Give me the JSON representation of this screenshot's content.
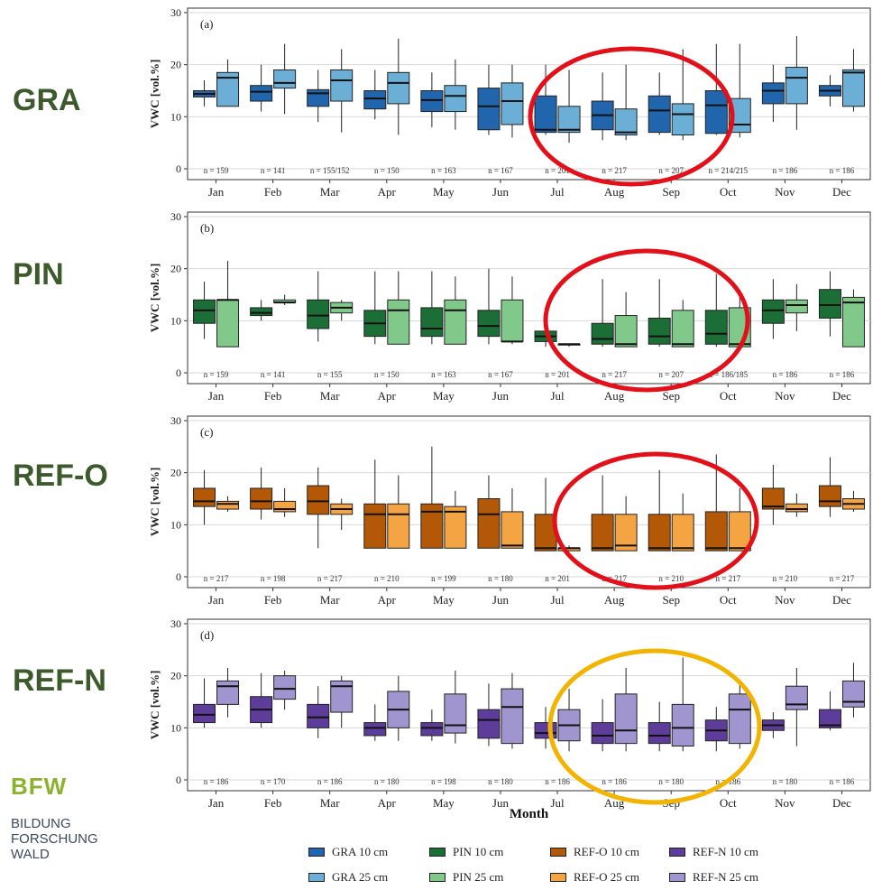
{
  "sites": [
    "GRA",
    "PIN",
    "REF-O",
    "REF-N"
  ],
  "brand": {
    "logo": "BFW",
    "lines": [
      "BILDUNG",
      "FORSCHUNG",
      "WALD"
    ]
  },
  "x_axis_title": "Month",
  "y_axis_label": "VWC [vol.%]",
  "legend": [
    {
      "label": "GRA 10 cm",
      "color": "#2166ac"
    },
    {
      "label": "GRA 25 cm",
      "color": "#6baed6"
    },
    {
      "label": "PIN 10 cm",
      "color": "#1b6e35"
    },
    {
      "label": "PIN 25 cm",
      "color": "#80c98a"
    },
    {
      "label": "REF-O 10 cm",
      "color": "#b35806"
    },
    {
      "label": "REF-O 25 cm",
      "color": "#f5a443"
    },
    {
      "label": "REF-N 10 cm",
      "color": "#5e3c99"
    },
    {
      "label": "REF-N 25 cm",
      "color": "#a195cf"
    }
  ],
  "highlights": [
    {
      "panel": 0,
      "color": "#e3101a"
    },
    {
      "panel": 1,
      "color": "#e3101a"
    },
    {
      "panel": 2,
      "color": "#e3101a"
    },
    {
      "panel": 3,
      "color": "#f2b400"
    }
  ],
  "chart_data": [
    {
      "type": "box",
      "panel_label": "(a)",
      "categories": [
        "Jan",
        "Feb",
        "Mar",
        "Apr",
        "May",
        "Jun",
        "Jul",
        "Aug",
        "Sep",
        "Oct",
        "Nov",
        "Dec"
      ],
      "ylabel": "VWC [vol.%]",
      "ylim": [
        0,
        30
      ],
      "yticks": [
        0,
        10,
        20,
        30
      ],
      "grid": true,
      "n_labels": [
        "n = 159",
        "n = 141",
        "n = 155/152",
        "n = 150",
        "n = 163",
        "n = 167",
        "n = 201",
        "n = 217",
        "n = 207",
        "n = 214/215",
        "n = 186",
        "n = 186"
      ],
      "series": [
        {
          "name": "GRA 10 cm",
          "color": "#2166ac",
          "boxes": [
            [
              12,
              13.8,
              14.4,
              15,
              17
            ],
            [
              11,
              13,
              14.8,
              16,
              20
            ],
            [
              9,
              12,
              14.5,
              15.2,
              19
            ],
            [
              9.5,
              11.5,
              13.5,
              15,
              19
            ],
            [
              8,
              11,
              13.2,
              15,
              18.5
            ],
            [
              6.5,
              7.5,
              12,
              15.5,
              20
            ],
            [
              6.5,
              7,
              7.5,
              14,
              20
            ],
            [
              5.5,
              7.5,
              10.3,
              13,
              18.5
            ],
            [
              6.5,
              7,
              11.2,
              14,
              18.5
            ],
            [
              6.5,
              6.8,
              12.2,
              15,
              24
            ],
            [
              9,
              12.5,
              15,
              16.5,
              20
            ],
            [
              12,
              14,
              15,
              16,
              18
            ]
          ]
        },
        {
          "name": "GRA 25 cm",
          "color": "#6baed6",
          "boxes": [
            [
              12,
              12,
              17.5,
              18.5,
              21
            ],
            [
              10.5,
              15.5,
              16.5,
              19,
              24
            ],
            [
              7,
              13,
              17,
              19,
              23
            ],
            [
              6.5,
              12.5,
              16.5,
              18.5,
              25
            ],
            [
              7.5,
              11,
              14,
              16,
              21
            ],
            [
              6,
              8.5,
              13,
              16.5,
              20
            ],
            [
              5,
              7,
              7.5,
              12,
              19
            ],
            [
              5.5,
              6.5,
              7,
              11.5,
              20
            ],
            [
              5.5,
              6.5,
              10.5,
              12.5,
              23
            ],
            [
              6,
              7,
              8.5,
              13.5,
              24
            ],
            [
              7.5,
              12.5,
              17.5,
              19.5,
              25.5
            ],
            [
              11,
              12,
              18.5,
              19,
              23
            ]
          ]
        }
      ]
    },
    {
      "type": "box",
      "panel_label": "(b)",
      "categories": [
        "Jan",
        "Feb",
        "Mar",
        "Apr",
        "May",
        "Jun",
        "Jul",
        "Aug",
        "Sep",
        "Oct",
        "Nov",
        "Dec"
      ],
      "ylabel": "VWC [vol.%]",
      "ylim": [
        0,
        30
      ],
      "yticks": [
        0,
        10,
        20,
        30
      ],
      "grid": true,
      "n_labels": [
        "n = 159",
        "n = 141",
        "n = 155",
        "n = 150",
        "n = 163",
        "n = 167",
        "n = 201",
        "n = 217",
        "n = 207",
        "n = 186/185",
        "n = 186",
        "n = 186"
      ],
      "series": [
        {
          "name": "PIN 10 cm",
          "color": "#1b6e35",
          "boxes": [
            [
              6.5,
              9.5,
              12,
              14,
              17.5
            ],
            [
              10,
              11,
              11.5,
              12.5,
              14
            ],
            [
              6,
              8.5,
              11,
              14,
              19.5
            ],
            [
              5.5,
              7,
              9.5,
              12,
              19.5
            ],
            [
              5.5,
              7,
              8.5,
              12.5,
              19.5
            ],
            [
              5.5,
              7,
              9,
              12,
              20
            ],
            [
              5,
              6,
              7,
              8,
              12
            ],
            [
              5,
              5.5,
              6.5,
              9.5,
              18
            ],
            [
              5,
              5.5,
              7,
              10.5,
              18
            ],
            [
              5,
              5.5,
              7.5,
              12,
              19
            ],
            [
              6.5,
              9.5,
              12,
              14,
              18
            ],
            [
              7,
              10.5,
              13,
              16,
              19.5
            ]
          ]
        },
        {
          "name": "PIN 25 cm",
          "color": "#80c98a",
          "boxes": [
            [
              5,
              5,
              14,
              14,
              21.5
            ],
            [
              13,
              13.5,
              13.5,
              14,
              15
            ],
            [
              10,
              11.5,
              12.5,
              13.5,
              14
            ],
            [
              5.5,
              5.5,
              12,
              14,
              19.5
            ],
            [
              5.5,
              5.5,
              12,
              14,
              18.5
            ],
            [
              5.5,
              6,
              6,
              14,
              18.5
            ],
            [
              5,
              5.5,
              5.5,
              5.5,
              5.5
            ],
            [
              5,
              5,
              5.5,
              11,
              15.5
            ],
            [
              5,
              5,
              5.5,
              12,
              14
            ],
            [
              5,
              5,
              5.5,
              12.5,
              16
            ],
            [
              8,
              11.5,
              13,
              14,
              17
            ],
            [
              5,
              5,
              13.5,
              14.5,
              16
            ]
          ]
        }
      ]
    },
    {
      "type": "box",
      "panel_label": "(c)",
      "categories": [
        "Jan",
        "Feb",
        "Mar",
        "Apr",
        "May",
        "Jun",
        "Jul",
        "Aug",
        "Sep",
        "Oct",
        "Nov",
        "Dec"
      ],
      "ylabel": "VWC [vol.%]",
      "ylim": [
        0,
        30
      ],
      "yticks": [
        0,
        10,
        20,
        30
      ],
      "grid": true,
      "n_labels": [
        "n = 217",
        "n = 198",
        "n = 217",
        "n = 210",
        "n = 199",
        "n = 180",
        "n = 201",
        "n = 217",
        "n = 210",
        "n = 217",
        "n = 210",
        "n = 217"
      ],
      "series": [
        {
          "name": "REF-O 10 cm",
          "color": "#b35806",
          "boxes": [
            [
              10,
              13.5,
              14.5,
              17,
              20.5
            ],
            [
              11,
              13,
              14.5,
              17,
              21
            ],
            [
              5.5,
              12,
              14.5,
              17.5,
              21
            ],
            [
              5.5,
              5.5,
              12,
              14,
              22.5
            ],
            [
              5.5,
              5.5,
              12.5,
              14,
              25
            ],
            [
              5.5,
              5.5,
              12,
              15,
              19.5
            ],
            [
              5,
              5,
              5.5,
              12,
              19
            ],
            [
              5,
              5,
              5.5,
              12,
              19.5
            ],
            [
              5,
              5,
              5.5,
              12,
              20.5
            ],
            [
              5,
              5,
              5.5,
              12.5,
              23.5
            ],
            [
              10,
              13,
              13.5,
              17,
              21.5
            ],
            [
              11.5,
              13.5,
              14.5,
              17.5,
              23
            ]
          ]
        },
        {
          "name": "REF-O 25 cm",
          "color": "#f5a443",
          "boxes": [
            [
              12.5,
              13,
              14,
              14.5,
              15.5
            ],
            [
              11.5,
              12.5,
              13,
              14.5,
              17
            ],
            [
              9,
              12,
              13,
              14,
              15
            ],
            [
              5.5,
              5.5,
              12,
              14,
              19.5
            ],
            [
              5.5,
              5.5,
              12.5,
              13.5,
              16.5
            ],
            [
              5.5,
              5.5,
              6,
              12.5,
              17
            ],
            [
              5,
              5,
              5.5,
              5.5,
              6
            ],
            [
              5,
              5,
              6,
              12,
              15.5
            ],
            [
              5,
              5,
              5.5,
              12,
              16
            ],
            [
              5,
              5,
              5.5,
              12.5,
              17
            ],
            [
              11.5,
              12.5,
              13,
              14,
              16
            ],
            [
              12.5,
              13,
              14,
              15,
              16.5
            ]
          ]
        }
      ]
    },
    {
      "type": "box",
      "panel_label": "(d)",
      "categories": [
        "Jan",
        "Feb",
        "Mar",
        "Apr",
        "May",
        "Jun",
        "Jul",
        "Aug",
        "Sep",
        "Oct",
        "Nov",
        "Dec"
      ],
      "ylabel": "VWC [vol.%]",
      "ylim": [
        0,
        30
      ],
      "yticks": [
        0,
        10,
        20,
        30
      ],
      "grid": true,
      "n_labels": [
        "n = 186",
        "n = 170",
        "n = 186",
        "n = 180",
        "n = 198",
        "n = 180",
        "n = 186",
        "n = 186",
        "n = 180",
        "n = 186",
        "n = 180",
        "n = 186"
      ],
      "series": [
        {
          "name": "REF-N 10 cm",
          "color": "#5e3c99",
          "boxes": [
            [
              10,
              11,
              12.5,
              14.5,
              19.5
            ],
            [
              10,
              11,
              13.5,
              16,
              20.5
            ],
            [
              8,
              10,
              12,
              14.5,
              18
            ],
            [
              7.5,
              8.5,
              10,
              11,
              14.5
            ],
            [
              7.5,
              8.5,
              10,
              11,
              13.5
            ],
            [
              6.5,
              8,
              11.5,
              13.5,
              18.5
            ],
            [
              6,
              8,
              9,
              11,
              14
            ],
            [
              5.5,
              7,
              8.5,
              11,
              15.5
            ],
            [
              5.5,
              7,
              8.5,
              11,
              15
            ],
            [
              5.5,
              7.5,
              9.5,
              11.5,
              14
            ],
            [
              8,
              9.5,
              10.5,
              11.5,
              13
            ],
            [
              9.5,
              10,
              10.5,
              13.5,
              17
            ]
          ]
        },
        {
          "name": "REF-N 25 cm",
          "color": "#a195cf",
          "boxes": [
            [
              12,
              14.5,
              18,
              19,
              21.5
            ],
            [
              13.5,
              15.5,
              17.5,
              20,
              21
            ],
            [
              10,
              13,
              18,
              19,
              20
            ],
            [
              7.5,
              10,
              13.5,
              17,
              20
            ],
            [
              7,
              9,
              10.5,
              16.5,
              21
            ],
            [
              6,
              7,
              14,
              17.5,
              20.5
            ],
            [
              5.5,
              7.5,
              10.5,
              13.5,
              17.5
            ],
            [
              5.5,
              7,
              9.5,
              16.5,
              21.5
            ],
            [
              5.5,
              6.5,
              10,
              14.5,
              23.5
            ],
            [
              6,
              7,
              13.5,
              16.5,
              18.5
            ],
            [
              6.5,
              13.5,
              14.5,
              18,
              21.5
            ],
            [
              12,
              14,
              15,
              19,
              22.5
            ]
          ]
        }
      ]
    }
  ]
}
